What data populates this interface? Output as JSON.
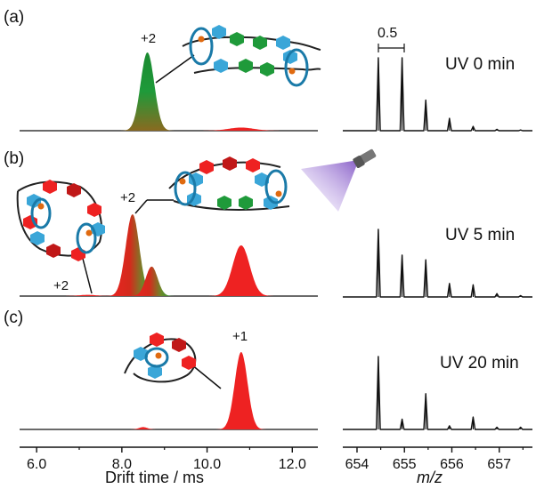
{
  "panels": [
    {
      "label": "(a)",
      "charge_main": "+2",
      "condition": "UV 0 min"
    },
    {
      "label": "(b)",
      "charge_main": "+2",
      "charge_secondary": "+2",
      "condition": "UV 5 min"
    },
    {
      "label": "(c)",
      "charge_main": "+1",
      "condition": "UV 20 min"
    }
  ],
  "spacing_label": "0.5",
  "colors": {
    "green": "#1f9a3a",
    "red": "#ee2222",
    "blue": "#3aa6d8",
    "dark_red": "#c01818",
    "purple": "#8a5cc8",
    "axis": "#111111"
  },
  "chart_data": [
    {
      "type": "area",
      "panel": "drift",
      "xlabel": "Drift time / ms",
      "xlim": [
        5.6,
        12.6
      ],
      "xticks": [
        "6.0",
        "8.0",
        "10.0",
        "12.0"
      ],
      "xtick_values": [
        6,
        8,
        10,
        12
      ],
      "series": [
        {
          "panel": "(a)",
          "color": "green",
          "peaks": [
            {
              "center": 8.6,
              "height": 1.0,
              "width": 0.16
            }
          ]
        },
        {
          "panel": "(a)",
          "color": "red",
          "peaks": [
            {
              "center": 10.8,
              "height": 0.04,
              "width": 0.3
            }
          ]
        },
        {
          "panel": "(b)",
          "color": "red-green",
          "peaks": [
            {
              "center": 8.25,
              "height": 1.0,
              "width": 0.16
            },
            {
              "center": 8.7,
              "height": 0.36,
              "width": 0.14
            }
          ]
        },
        {
          "panel": "(b)",
          "color": "red",
          "peaks": [
            {
              "center": 10.8,
              "height": 0.62,
              "width": 0.2
            },
            {
              "center": 7.2,
              "height": 0.015,
              "width": 0.2
            }
          ]
        },
        {
          "panel": "(c)",
          "color": "red",
          "peaks": [
            {
              "center": 10.8,
              "height": 1.0,
              "width": 0.15
            },
            {
              "center": 8.5,
              "height": 0.03,
              "width": 0.1
            }
          ]
        }
      ]
    },
    {
      "type": "bar",
      "panel": "mass",
      "xlabel": "m/z",
      "xlim": [
        653.7,
        657.7
      ],
      "xticks": [
        "654",
        "655",
        "656",
        "657"
      ],
      "xtick_values": [
        654,
        655,
        656,
        657
      ],
      "series": [
        {
          "panel": "(a)",
          "x": [
            654.45,
            654.95,
            655.45,
            655.95,
            656.45,
            656.95,
            657.45
          ],
          "values": [
            1.0,
            1.0,
            0.42,
            0.17,
            0.06,
            0.02,
            0.01
          ]
        },
        {
          "panel": "(b)",
          "x": [
            654.45,
            654.95,
            655.45,
            655.95,
            656.45,
            656.95,
            657.45
          ],
          "values": [
            1.0,
            0.62,
            0.55,
            0.2,
            0.18,
            0.05,
            0.02
          ]
        },
        {
          "panel": "(c)",
          "x": [
            654.45,
            654.95,
            655.45,
            655.95,
            656.45,
            656.95,
            657.45
          ],
          "values": [
            1.0,
            0.14,
            0.49,
            0.05,
            0.17,
            0.03,
            0.03
          ]
        }
      ]
    }
  ]
}
